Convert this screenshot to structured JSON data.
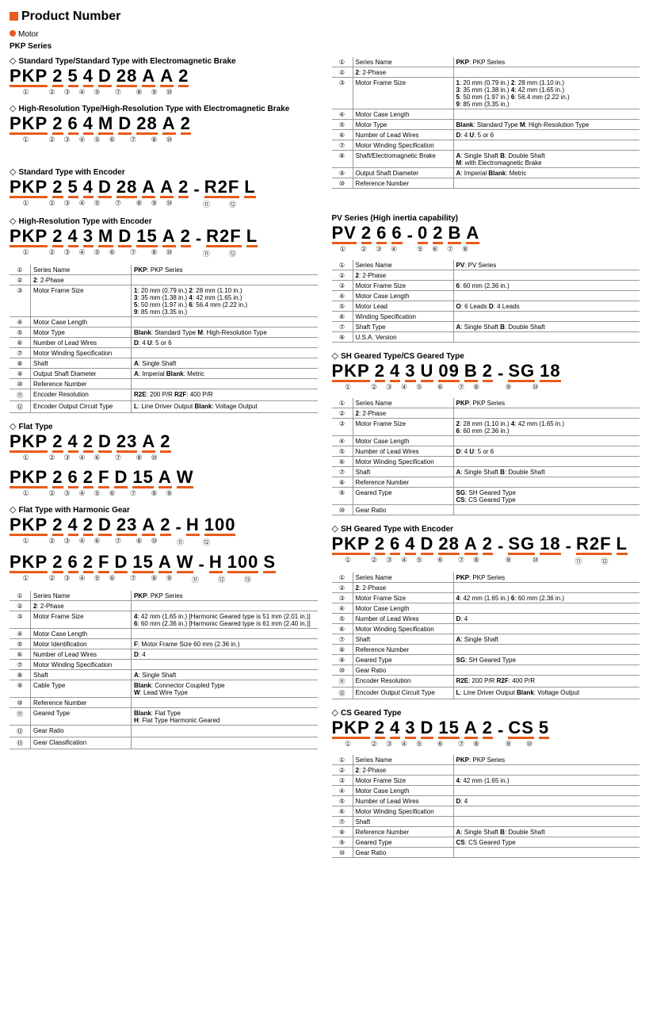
{
  "page_title": "Product Number",
  "motor_hdr": "Motor",
  "black": "#000",
  "orange": "#e85b1c",
  "grey": "#999",
  "left": {
    "series_hdr": "PKP Series",
    "t1": {
      "title": "Standard Type/Standard Type with Electromagnetic Brake",
      "segs": [
        "PKP",
        "2",
        "5",
        "4",
        "D",
        "28",
        "A",
        "A",
        "2"
      ],
      "nums": [
        "①",
        "②",
        "③",
        "④",
        "⑤",
        "⑦",
        "⑧",
        "⑨",
        "⑩"
      ]
    },
    "t2": {
      "title": "High-Resolution Type/High-Resolution Type with Electromagnetic Brake",
      "segs": [
        "PKP",
        "2",
        "6",
        "4",
        "M",
        "D",
        "28",
        "A",
        "2"
      ],
      "nums": [
        "①",
        "②",
        "③",
        "④",
        "⑤",
        "⑥",
        "⑦",
        "⑧",
        "⑩"
      ]
    },
    "t3": {
      "title": "Standard Type with Encoder",
      "segs": [
        "PKP",
        "2",
        "5",
        "4",
        "D",
        "28",
        "A",
        "A",
        "2",
        "-",
        "R2F",
        "L"
      ],
      "nums": [
        "①",
        "②",
        "③",
        "④",
        "⑤",
        "⑦",
        "⑧",
        "⑨",
        "⑩",
        "",
        "⑪",
        "⑫"
      ]
    },
    "t4": {
      "title": "High-Resolution Type with Encoder",
      "segs": [
        "PKP",
        "2",
        "4",
        "3",
        "M",
        "D",
        "15",
        "A",
        "2",
        "-",
        "R2F",
        "L"
      ],
      "nums": [
        "①",
        "②",
        "③",
        "④",
        "⑤",
        "⑥",
        "⑦",
        "⑧",
        "⑩",
        "",
        "⑪",
        "⑫"
      ]
    },
    "tbl1": [
      [
        "①",
        "Series Name",
        "PKP: PKP Series"
      ],
      [
        "②",
        "2: 2-Phase",
        ""
      ],
      [
        "③",
        "Motor Frame Size",
        "1: 20 mm (0.79 in.)   2: 28 mm (1.10 in.)\n3: 35 mm (1.38 in.)   4: 42 mm (1.65 in.)\n5: 50 mm (1.97 in.)   6: 56.4 mm (2.22 in.)\n9: 85 mm (3.35 in.)"
      ],
      [
        "④",
        "Motor Case Length",
        ""
      ],
      [
        "⑤",
        "Motor Type",
        "Blank: Standard Type    M: High-Resolution Type"
      ],
      [
        "⑥",
        "Number of Lead Wires",
        "D: 4    U: 5 or 6"
      ],
      [
        "⑦",
        "Motor Winding Specification",
        ""
      ],
      [
        "⑧",
        "Shaft",
        "A: Single Shaft"
      ],
      [
        "⑨",
        "Output Shaft Diameter",
        "A: Imperial    Blank: Metric"
      ],
      [
        "⑩",
        "Reference Number",
        ""
      ],
      [
        "⑪",
        "Encoder Resolution",
        "R2E: 200 P/R    R2F: 400 P/R"
      ],
      [
        "⑫",
        "Encoder Output Circuit Type",
        "L: Line Driver Output    Blank: Voltage Output"
      ]
    ],
    "t5": {
      "title": "Flat Type",
      "segs": [
        "PKP",
        "2",
        "4",
        "2",
        "D",
        "23",
        "A",
        "2"
      ],
      "nums": [
        "①",
        "②",
        "③",
        "④",
        "⑥",
        "⑦",
        "⑧",
        "⑩"
      ]
    },
    "t6": {
      "segs": [
        "PKP",
        "2",
        "6",
        "2",
        "F",
        "D",
        "15",
        "A",
        "W"
      ],
      "nums": [
        "①",
        "②",
        "③",
        "④",
        "⑤",
        "⑥",
        "⑦",
        "⑧",
        "⑨"
      ]
    },
    "t7": {
      "title": "Flat Type with Harmonic Gear",
      "segs": [
        "PKP",
        "2",
        "4",
        "2",
        "D",
        "23",
        "A",
        "2",
        "-",
        "H",
        "100"
      ],
      "nums": [
        "①",
        "②",
        "③",
        "④",
        "⑥",
        "⑦",
        "⑧",
        "⑩",
        "",
        "⑪",
        "⑫"
      ]
    },
    "t8": {
      "segs": [
        "PKP",
        "2",
        "6",
        "2",
        "F",
        "D",
        "15",
        "A",
        "W",
        "-",
        "H",
        "100",
        "S"
      ],
      "nums": [
        "①",
        "②",
        "③",
        "④",
        "⑤",
        "⑥",
        "⑦",
        "⑧",
        "⑨",
        "",
        "⑪",
        "⑫",
        "⑬"
      ]
    },
    "tbl2": [
      [
        "①",
        "Series Name",
        "PKP: PKP Series"
      ],
      [
        "②",
        "2: 2-Phase",
        ""
      ],
      [
        "③",
        "Motor Frame Size",
        "4: 42 mm (1.65 in.) [Harmonic Geared type is 51 mm (2.01 in.)]\n6: 60 mm (2.36 in.) [Harmonic Geared type is 61 mm (2.40 in.)]"
      ],
      [
        "④",
        "Motor Case Length",
        ""
      ],
      [
        "⑤",
        "Motor Identification",
        "F: Motor Frame Size 60 mm (2.36 in.)"
      ],
      [
        "⑥",
        "Number of Lead Wires",
        "D: 4"
      ],
      [
        "⑦",
        "Motor Winding Specification",
        ""
      ],
      [
        "⑧",
        "Shaft",
        "A: Single Shaft"
      ],
      [
        "⑨",
        "Cable Type",
        "Blank: Connector Coupled Type\nW: Lead Wire Type"
      ],
      [
        "⑩",
        "Reference Number",
        ""
      ],
      [
        "⑪",
        "Geared Type",
        "Blank: Flat Type\nH: Flat Type Harmonic Geared"
      ],
      [
        "⑫",
        "Gear Ratio",
        ""
      ],
      [
        "⑬",
        "Gear Classification",
        ""
      ]
    ]
  },
  "right": {
    "tbl0": [
      [
        "①",
        "Series Name",
        "PKP: PKP Series"
      ],
      [
        "②",
        "2: 2-Phase",
        ""
      ],
      [
        "③",
        "Motor Frame Size",
        "1: 20 mm (0.79 in.)   2: 28 mm (1.10 in.)\n3: 35 mm (1.38 in.)   4: 42 mm (1.65 in.)\n5: 50 mm (1.97 in.)   6: 56.4 mm (2.22 in.)\n9: 85 mm (3.35 in.)"
      ],
      [
        "④",
        "Motor Case Length",
        ""
      ],
      [
        "⑤",
        "Motor Type",
        "Blank: Standard Type    M: High-Resolution Type"
      ],
      [
        "⑥",
        "Number of Lead Wires",
        "D: 4    U: 5 or 6"
      ],
      [
        "⑦",
        "Motor Winding Specification",
        ""
      ],
      [
        "⑧",
        "Shaft/Electromagnetic Brake",
        "A: Single Shaft    B: Double Shaft\nM: with Electromagnetic Brake"
      ],
      [
        "⑨",
        "Output Shaft Diameter",
        "A: Imperial    Blank: Metric"
      ],
      [
        "⑩",
        "Reference Number",
        ""
      ]
    ],
    "pv_title": "PV Series (High inertia capability)",
    "pv": {
      "segs": [
        "PV",
        "2",
        "6",
        "6",
        "-",
        "0",
        "2",
        "B",
        "A"
      ],
      "nums": [
        "①",
        "②",
        "③",
        "④",
        "",
        "⑤",
        "⑥",
        "⑦",
        "⑧"
      ]
    },
    "tbl_pv": [
      [
        "①",
        "Series Name",
        "PV: PV Series"
      ],
      [
        "②",
        "2: 2-Phase",
        ""
      ],
      [
        "③",
        "Motor Frame Size",
        "6: 60 mm (2.36 in.)"
      ],
      [
        "④",
        "Motor Case Length",
        ""
      ],
      [
        "⑤",
        "Motor Lead",
        "O: 6 Leads    D: 4 Leads"
      ],
      [
        "⑥",
        "Winding Specification",
        ""
      ],
      [
        "⑦",
        "Shaft Type",
        "A: Single Shaft    B: Double Shaft"
      ],
      [
        "⑧",
        "U.S.A. Version",
        ""
      ]
    ],
    "sh_title": "SH Geared Type/CS Geared Type",
    "sh": {
      "segs": [
        "PKP",
        "2",
        "4",
        "3",
        "U",
        "09",
        "B",
        "2",
        "-",
        "SG",
        "18"
      ],
      "nums": [
        "①",
        "②",
        "③",
        "④",
        "⑤",
        "⑥",
        "⑦",
        "⑧",
        "",
        "⑨",
        "⑩"
      ]
    },
    "tbl_sh": [
      [
        "①",
        "Series Name",
        "PKP: PKP Series"
      ],
      [
        "②",
        "2: 2-Phase",
        ""
      ],
      [
        "③",
        "Motor Frame Size",
        "2: 28 mm (1.10 in.)   4: 42 mm (1.65 in.)\n6: 60 mm (2.36 in.)"
      ],
      [
        "④",
        "Motor Case Length",
        ""
      ],
      [
        "⑤",
        "Number of Lead Wires",
        "D: 4    U: 5 or 6"
      ],
      [
        "⑥",
        "Motor Winding Specification",
        ""
      ],
      [
        "⑦",
        "Shaft",
        "A: Single Shaft    B: Double Shaft"
      ],
      [
        "⑧",
        "Reference Number",
        ""
      ],
      [
        "⑨",
        "Geared Type",
        "SG: SH Geared Type\nCS: CS Geared Type"
      ],
      [
        "⑩",
        "Gear Ratio",
        ""
      ]
    ],
    "she_title": "SH Geared Type with Encoder",
    "she": {
      "segs": [
        "PKP",
        "2",
        "6",
        "4",
        "D",
        "28",
        "A",
        "2",
        "-",
        "SG",
        "18",
        "-",
        "R2F",
        "L"
      ],
      "nums": [
        "①",
        "②",
        "③",
        "④",
        "⑤",
        "⑥",
        "⑦",
        "⑧",
        "",
        "⑨",
        "⑩",
        "",
        "⑪",
        "⑫"
      ]
    },
    "tbl_she": [
      [
        "①",
        "Series Name",
        "PKP: PKP Series"
      ],
      [
        "②",
        "2: 2-Phase",
        ""
      ],
      [
        "③",
        "Motor Frame Size",
        "4: 42 mm (1.65 in.)   6: 60 mm (2.36 in.)"
      ],
      [
        "④",
        "Motor Case Length",
        ""
      ],
      [
        "⑤",
        "Number of Lead Wires",
        "D: 4"
      ],
      [
        "⑥",
        "Motor Winding Specification",
        ""
      ],
      [
        "⑦",
        "Shaft",
        "A: Single Shaft"
      ],
      [
        "⑧",
        "Reference Number",
        ""
      ],
      [
        "⑨",
        "Geared Type",
        "SG: SH Geared Type"
      ],
      [
        "⑩",
        "Gear Ratio",
        ""
      ],
      [
        "⑪",
        "Encoder Resolution",
        "R2E: 200 P/R    R2F: 400 P/R"
      ],
      [
        "⑫",
        "Encoder Output Circuit Type",
        "L: Line Driver Output    Blank: Voltage Output"
      ]
    ],
    "cs_title": "CS Geared Type",
    "cs": {
      "segs": [
        "PKP",
        "2",
        "4",
        "3",
        "D",
        "15",
        "A",
        "2",
        "-",
        "CS",
        "5"
      ],
      "nums": [
        "①",
        "②",
        "③",
        "④",
        "⑤",
        "⑥",
        "⑦",
        "⑧",
        "",
        "⑨",
        "⑩"
      ]
    },
    "tbl_cs": [
      [
        "①",
        "Series Name",
        "PKP: PKP Series"
      ],
      [
        "②",
        "2: 2-Phase",
        ""
      ],
      [
        "③",
        "Motor Frame Size",
        "4: 42 mm (1.65 in.)"
      ],
      [
        "④",
        "Motor Case Length",
        ""
      ],
      [
        "⑤",
        "Number of Lead Wires",
        "D: 4"
      ],
      [
        "⑥",
        "Motor Winding Specification",
        ""
      ],
      [
        "⑦",
        "Shaft",
        ""
      ],
      [
        "⑧",
        "Reference Number",
        "A: Single Shaft    B: Double Shaft"
      ],
      [
        "⑨",
        "Geared Type",
        "CS: CS Geared Type"
      ],
      [
        "⑩",
        "Gear Ratio",
        ""
      ]
    ]
  }
}
